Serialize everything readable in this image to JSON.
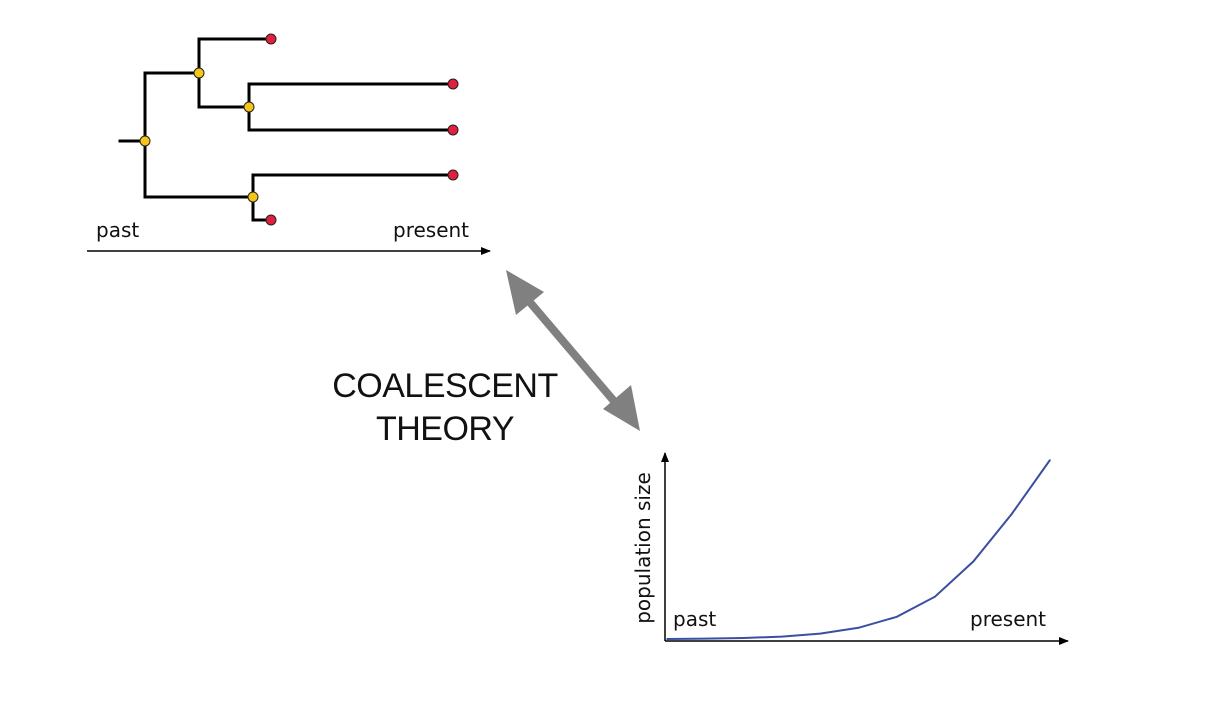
{
  "tree": {
    "axis_left_label": "past",
    "axis_right_label": "present",
    "internal_node_color": "#f5c518",
    "tip_color": "#e0203c",
    "branch_color": "#000000"
  },
  "link": {
    "line1": "COALESCENT",
    "line2": "THEORY",
    "arrow_color": "#808080"
  },
  "chart_data": {
    "type": "line",
    "ylabel": "population size",
    "x_left_label": "past",
    "x_right_label": "present",
    "line_color": "#3a4fa0",
    "x": [
      0,
      1,
      2,
      3,
      4,
      5,
      6,
      7,
      8,
      9,
      10
    ],
    "values": [
      0.5,
      0.7,
      1.0,
      1.7,
      3.2,
      6.1,
      11.6,
      21.7,
      39.3,
      63.0,
      90.0
    ],
    "ylim": [
      0,
      100
    ],
    "grid": false
  }
}
